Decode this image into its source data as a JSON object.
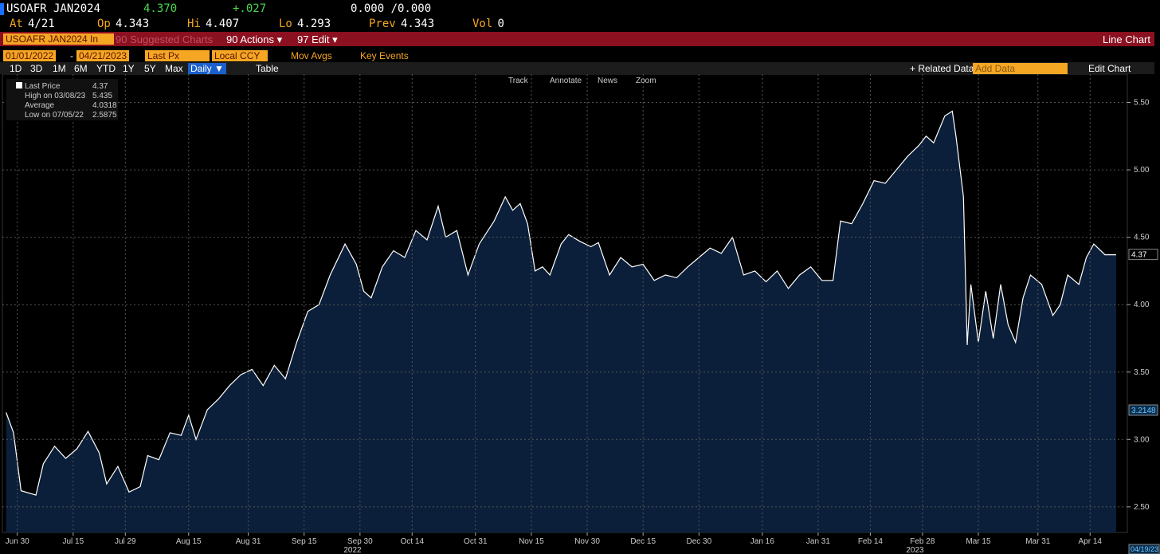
{
  "header": {
    "ticker": "USOAFR JAN2024",
    "last": "4.370",
    "change": "+.027",
    "bid_ask": "0.000 /0.000",
    "row2": [
      {
        "label": "At",
        "value": "4/21"
      },
      {
        "label": "Op",
        "value": "4.343"
      },
      {
        "label": "Hi",
        "value": "4.407"
      },
      {
        "label": "Lo",
        "value": "4.293"
      },
      {
        "label": "Prev",
        "value": "4.343"
      },
      {
        "label": "Vol",
        "value": "0"
      }
    ]
  },
  "menu": {
    "security": "USOAFR JAN2024 In",
    "items": [
      "90 Suggested Charts",
      "90 Actions ▾",
      "97 Edit ▾"
    ],
    "chart_type": "Line Chart"
  },
  "controls": {
    "start": "01/01/2022",
    "dash": "-",
    "end": "04/21/2023",
    "field": "Last Px",
    "currency": "Local CCY",
    "options": [
      "Mov Avgs",
      "Key Events"
    ]
  },
  "periods": [
    "1D",
    "3D",
    "1M",
    "6M",
    "YTD",
    "1Y",
    "5Y",
    "Max"
  ],
  "frequency": "Daily ▼",
  "table": "Table",
  "related": "+ Related Data",
  "add_data": "Add Data",
  "edit_chart": "Edit Chart",
  "tools": [
    "Track",
    "Annotate",
    "News",
    "Zoom"
  ],
  "chart_data": {
    "type": "line",
    "x": [
      "2022-06-27",
      "2022-06-29",
      "2022-07-01",
      "2022-07-05",
      "2022-07-07",
      "2022-07-10",
      "2022-07-13",
      "2022-07-16",
      "2022-07-19",
      "2022-07-22",
      "2022-07-24",
      "2022-07-27",
      "2022-07-30",
      "2022-08-02",
      "2022-08-04",
      "2022-08-07",
      "2022-08-10",
      "2022-08-13",
      "2022-08-15",
      "2022-08-17",
      "2022-08-20",
      "2022-08-23",
      "2022-08-26",
      "2022-08-29",
      "2022-09-01",
      "2022-09-04",
      "2022-09-07",
      "2022-09-10",
      "2022-09-13",
      "2022-09-16",
      "2022-09-19",
      "2022-09-22",
      "2022-09-26",
      "2022-09-29",
      "2022-10-01",
      "2022-10-03",
      "2022-10-06",
      "2022-10-09",
      "2022-10-12",
      "2022-10-15",
      "2022-10-18",
      "2022-10-21",
      "2022-10-23",
      "2022-10-26",
      "2022-10-29",
      "2022-11-01",
      "2022-11-05",
      "2022-11-08",
      "2022-11-10",
      "2022-11-12",
      "2022-11-14",
      "2022-11-16",
      "2022-11-18",
      "2022-11-20",
      "2022-11-23",
      "2022-11-25",
      "2022-11-28",
      "2022-12-01",
      "2022-12-03",
      "2022-12-06",
      "2022-12-09",
      "2022-12-12",
      "2022-12-15",
      "2022-12-18",
      "2022-12-21",
      "2022-12-24",
      "2022-12-27",
      "2022-12-30",
      "2023-01-02",
      "2023-01-05",
      "2023-01-08",
      "2023-01-11",
      "2023-01-14",
      "2023-01-17",
      "2023-01-20",
      "2023-01-23",
      "2023-01-26",
      "2023-01-29",
      "2023-02-01",
      "2023-02-04",
      "2023-02-06",
      "2023-02-09",
      "2023-02-12",
      "2023-02-15",
      "2023-02-18",
      "2023-02-21",
      "2023-02-24",
      "2023-02-27",
      "2023-03-01",
      "2023-03-03",
      "2023-03-06",
      "2023-03-08",
      "2023-03-09",
      "2023-03-11",
      "2023-03-12",
      "2023-03-13",
      "2023-03-15",
      "2023-03-17",
      "2023-03-19",
      "2023-03-21",
      "2023-03-23",
      "2023-03-25",
      "2023-03-27",
      "2023-03-29",
      "2023-04-01",
      "2023-04-04",
      "2023-04-06",
      "2023-04-08",
      "2023-04-11",
      "2023-04-13",
      "2023-04-15",
      "2023-04-18",
      "2023-04-19",
      "2023-04-21"
    ],
    "series": [
      {
        "name": "Last Price",
        "color": "#ffffff",
        "fill": "#0b1f3a",
        "values": [
          3.2,
          3.05,
          2.62,
          2.5875,
          2.82,
          2.95,
          2.86,
          2.93,
          3.06,
          2.9,
          2.67,
          2.8,
          2.61,
          2.65,
          2.88,
          2.85,
          3.05,
          3.03,
          3.18,
          3.0,
          3.22,
          3.3,
          3.4,
          3.48,
          3.52,
          3.4,
          3.55,
          3.45,
          3.72,
          3.95,
          4.0,
          4.22,
          4.45,
          4.3,
          4.1,
          4.05,
          4.28,
          4.4,
          4.35,
          4.55,
          4.48,
          4.73,
          4.5,
          4.55,
          4.22,
          4.45,
          4.62,
          4.8,
          4.7,
          4.75,
          4.6,
          4.25,
          4.28,
          4.22,
          4.45,
          4.52,
          4.47,
          4.43,
          4.46,
          4.22,
          4.35,
          4.28,
          4.3,
          4.18,
          4.22,
          4.2,
          4.28,
          4.35,
          4.42,
          4.38,
          4.5,
          4.22,
          4.25,
          4.17,
          4.25,
          4.12,
          4.22,
          4.28,
          4.18,
          4.18,
          4.62,
          4.6,
          4.75,
          4.92,
          4.9,
          5.0,
          5.1,
          5.18,
          5.25,
          5.2,
          5.4,
          5.435,
          5.25,
          4.8,
          3.7,
          4.15,
          3.72,
          4.1,
          3.75,
          4.15,
          3.85,
          3.72,
          4.05,
          4.22,
          4.15,
          3.92,
          4.0,
          4.22,
          4.15,
          4.35,
          4.45,
          4.37,
          4.37,
          4.37
        ]
      }
    ],
    "xlim": [
      "2022-06-26",
      "2023-04-24"
    ],
    "xticks": [
      {
        "value": "2022-06-30",
        "label": "Jun 30"
      },
      {
        "value": "2022-07-15",
        "label": "Jul 15"
      },
      {
        "value": "2022-07-29",
        "label": "Jul 29"
      },
      {
        "value": "2022-08-15",
        "label": "Aug 15"
      },
      {
        "value": "2022-08-31",
        "label": "Aug 31"
      },
      {
        "value": "2022-09-15",
        "label": "Sep 15"
      },
      {
        "value": "2022-09-30",
        "label": "Sep 30"
      },
      {
        "value": "2022-10-14",
        "label": "Oct 14"
      },
      {
        "value": "2022-10-31",
        "label": "Oct 31"
      },
      {
        "value": "2022-11-15",
        "label": "Nov 15"
      },
      {
        "value": "2022-11-30",
        "label": "Nov 30"
      },
      {
        "value": "2022-12-15",
        "label": "Dec 15"
      },
      {
        "value": "2022-12-30",
        "label": "Dec 30"
      },
      {
        "value": "2023-01-16",
        "label": "Jan 16"
      },
      {
        "value": "2023-01-31",
        "label": "Jan 31"
      },
      {
        "value": "2023-02-14",
        "label": "Feb 14"
      },
      {
        "value": "2023-02-28",
        "label": "Feb 28"
      },
      {
        "value": "2023-03-15",
        "label": "Mar 15"
      },
      {
        "value": "2023-03-31",
        "label": "Mar 31"
      },
      {
        "value": "2023-04-14",
        "label": "Apr 14"
      }
    ],
    "year_labels": [
      {
        "value": "2022-09-28",
        "label": "2022"
      },
      {
        "value": "2023-02-26",
        "label": "2023"
      }
    ],
    "ylim": [
      2.31,
      5.71
    ],
    "yticks": [
      {
        "value": 2.5,
        "label": "2.50"
      },
      {
        "value": 3,
        "label": "3.00"
      },
      {
        "value": 3.5,
        "label": "3.50"
      },
      {
        "value": 4,
        "label": "4.00"
      },
      {
        "value": 4.5,
        "label": "4.50"
      },
      {
        "value": 5,
        "label": "5.00"
      },
      {
        "value": 5.5,
        "label": "5.50"
      }
    ],
    "grid": true,
    "last_value": 4.37,
    "stats": [
      {
        "label": "High on 03/08/23",
        "value": 5.435
      },
      {
        "label": "Average",
        "value": 4.0318
      },
      {
        "label": "Low on 07/05/22",
        "value": 2.5875
      }
    ],
    "marker_value": 3.2148,
    "date_label": "04/19/23"
  }
}
